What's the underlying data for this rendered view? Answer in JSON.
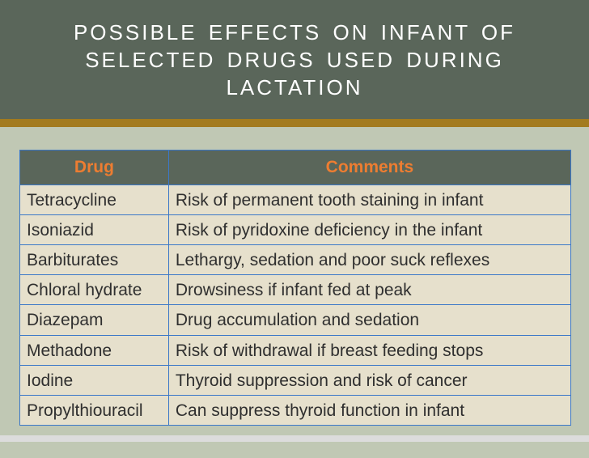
{
  "slide": {
    "title": "POSSIBLE EFFECTS ON INFANT OF SELECTED DRUGS USED DURING LACTATION",
    "colors": {
      "title_band_bg": "#5a665a",
      "title_text": "#ffffff",
      "accent_bar": "#a37b1f",
      "body_bg": "#c0c8b4",
      "table_border": "#3b78c8",
      "header_bg": "#5a665a",
      "header_text": "#ed7d31",
      "row_bg": "#e6e0cc",
      "row_text": "#2f2f2f"
    },
    "table": {
      "columns": [
        "Drug",
        "Comments"
      ],
      "rows": [
        [
          "Tetracycline",
          "Risk of permanent tooth staining in infant"
        ],
        [
          "Isoniazid",
          "Risk of pyridoxine deficiency in the infant"
        ],
        [
          "Barbiturates",
          "Lethargy, sedation and poor suck reflexes"
        ],
        [
          "Chloral hydrate",
          "Drowsiness if infant fed at peak"
        ],
        [
          "Diazepam",
          "Drug accumulation and sedation"
        ],
        [
          "Methadone",
          "Risk of withdrawal if breast feeding stops"
        ],
        [
          "Iodine",
          "Thyroid suppression and risk of cancer"
        ],
        [
          "Propylthiouracil",
          "Can suppress thyroid function in infant"
        ]
      ]
    }
  }
}
